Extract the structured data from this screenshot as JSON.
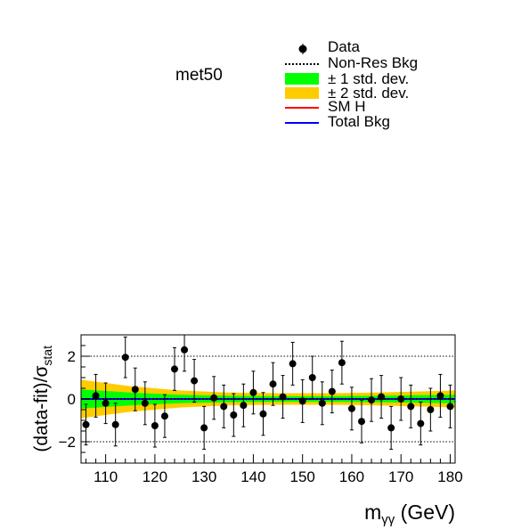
{
  "category_label": "met50",
  "legend": {
    "data": "Data",
    "nonres": "Non-Res Bkg",
    "one_sigma": "± 1 std. dev.",
    "two_sigma": "± 2 std. dev.",
    "smh": "SM H",
    "total": "Total Bkg"
  },
  "colors": {
    "one_sigma": "#00ff00",
    "two_sigma": "#ffcc00",
    "smh": "#ff0000",
    "total": "#0000ff",
    "data": "#000000"
  },
  "chart_data": {
    "type": "scatter",
    "title": "",
    "ylabel": "(data-fit)/σ_stat",
    "xlabel": "m_γγ (GeV)",
    "xlim": [
      105,
      181
    ],
    "ylim": [
      -3,
      3
    ],
    "xticks": [
      110,
      120,
      130,
      140,
      150,
      160,
      170,
      180
    ],
    "yticks": [
      -2,
      0,
      2
    ],
    "gridlines_y": [
      -2,
      2
    ],
    "series": [
      {
        "name": "Data",
        "x": [
          106,
          108,
          110,
          112,
          114,
          116,
          118,
          120,
          122,
          124,
          126,
          128,
          130,
          132,
          134,
          136,
          138,
          140,
          142,
          144,
          146,
          148,
          150,
          152,
          154,
          156,
          158,
          160,
          162,
          164,
          166,
          168,
          170,
          172,
          174,
          176,
          178,
          180
        ],
        "y": [
          -1.2,
          0.15,
          -0.2,
          -1.2,
          1.95,
          0.45,
          -0.2,
          -1.25,
          -0.8,
          1.4,
          2.3,
          0.85,
          -1.35,
          0.05,
          -0.35,
          -0.75,
          -0.3,
          0.3,
          -0.7,
          0.7,
          0.1,
          1.65,
          -0.1,
          1.0,
          -0.2,
          0.35,
          1.7,
          -0.45,
          -1.05,
          -0.05,
          0.1,
          -1.35,
          0.0,
          -0.35,
          -1.15,
          -0.5,
          0.15,
          -0.35
        ],
        "yerr": [
          0.95,
          1.0,
          0.95,
          1.0,
          0.95,
          1.0,
          1.0,
          1.0,
          1.0,
          1.0,
          1.0,
          1.0,
          1.0,
          1.0,
          1.0,
          1.0,
          1.0,
          1.0,
          1.0,
          1.0,
          1.0,
          1.0,
          1.0,
          1.0,
          1.0,
          1.0,
          1.0,
          1.0,
          1.0,
          1.0,
          1.0,
          1.0,
          1.0,
          1.0,
          1.0,
          1.0,
          1.0,
          1.0
        ]
      }
    ],
    "band_1sigma": {
      "x": [
        105,
        115,
        125,
        135,
        145,
        155,
        165,
        175,
        181
      ],
      "half": [
        0.45,
        0.3,
        0.2,
        0.15,
        0.13,
        0.13,
        0.15,
        0.18,
        0.2
      ]
    },
    "band_2sigma": {
      "x": [
        105,
        115,
        125,
        135,
        145,
        155,
        165,
        175,
        181
      ],
      "half": [
        0.9,
        0.6,
        0.4,
        0.3,
        0.27,
        0.27,
        0.3,
        0.36,
        0.4
      ]
    }
  }
}
